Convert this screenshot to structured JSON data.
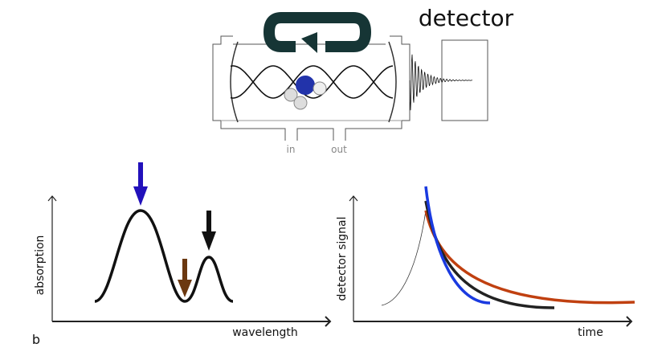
{
  "detector_label": "detector",
  "ports": {
    "in": "in",
    "out": "out"
  },
  "absorption_plot": {
    "y_label": "absorption",
    "x_label": "wavelength",
    "panel_label": "b"
  },
  "signal_plot": {
    "y_label": "detector signal",
    "x_label": "time"
  }
}
